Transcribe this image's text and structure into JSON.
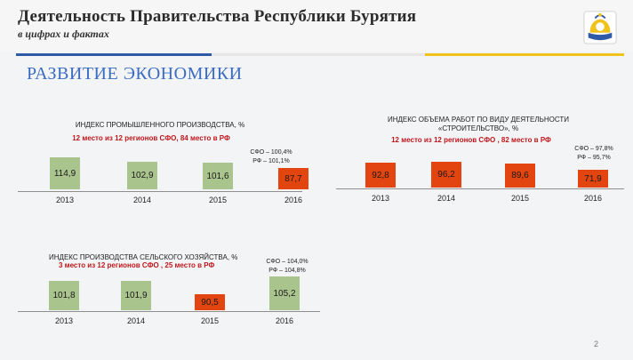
{
  "header": {
    "title": "Деятельность Правительства Республики Бурятия",
    "subtitle": "в цифрах и фактах",
    "brand_colors": {
      "blue": "#2f5aa8",
      "yellow": "#f1c21b"
    },
    "emblem": "buryatia-emblem-icon"
  },
  "section_title": "РАЗВИТИЕ ЭКОНОМИКИ",
  "page_number": "2",
  "chart_data": [
    {
      "type": "bar",
      "title": "ИНДЕКС ПРОМЫШЛЕННОГО ПРОИЗВОДСТВА, %",
      "rank_text": "12 место из 12 регионов СФО,  84 место в РФ",
      "note_lines": [
        "СФО – 100,4%",
        "РФ – 101,1%"
      ],
      "categories": [
        "2013",
        "2014",
        "2015",
        "2016"
      ],
      "values": [
        114.9,
        102.9,
        101.6,
        87.7
      ],
      "value_labels": [
        "114,9",
        "102,9",
        "101,6",
        "87,7"
      ],
      "bar_colors": [
        "#a9c48d",
        "#a9c48d",
        "#a9c48d",
        "#e2450f"
      ]
    },
    {
      "type": "bar",
      "title": "ИНДЕКС ОБЪЕМА РАБОТ ПО ВИДУ ДЕЯТЕЛЬНОСТИ «СТРОИТЕЛЬСТВО», %",
      "rank_text": "12 место из 12 регионов СФО , 82  место в РФ",
      "note_lines": [
        "СФО – 97,8%",
        "РФ – 95,7%"
      ],
      "categories": [
        "2013",
        "2014",
        "2015",
        "2016"
      ],
      "values": [
        92.8,
        96.2,
        89.6,
        71.9
      ],
      "value_labels": [
        "92,8",
        "96,2",
        "89,6",
        "71,9"
      ],
      "bar_colors": [
        "#e2450f",
        "#e2450f",
        "#e2450f",
        "#e2450f"
      ]
    },
    {
      "type": "bar",
      "title": "ИНДЕКС ПРОИЗВОДСТВА СЕЛЬСКОГО ХОЗЯЙСТВА, %",
      "rank_text": "3 место из 12 регионов СФО ,  25 место в РФ",
      "note_lines": [
        "СФО – 104,0%",
        "РФ – 104,8%"
      ],
      "categories": [
        "2013",
        "2014",
        "2015",
        "2016"
      ],
      "values": [
        101.8,
        101.9,
        90.5,
        105.2
      ],
      "value_labels": [
        "101,8",
        "101,9",
        "90,5",
        "105,2"
      ],
      "bar_colors": [
        "#a9c48d",
        "#a9c48d",
        "#e2450f",
        "#a9c48d"
      ]
    }
  ]
}
